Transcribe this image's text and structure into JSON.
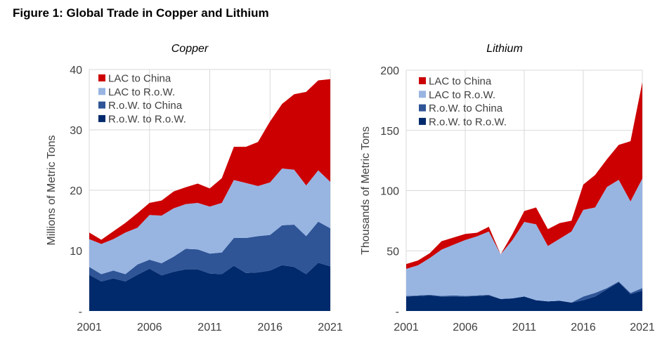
{
  "figure_title": "Figure 1: Global Trade in Copper and Lithium",
  "colors": {
    "LAC to China": "#cc0000",
    "LAC to R.o.W.": "#98b5e2",
    "R.o.W. to China": "#2f5597",
    "R.o.W. to R.o.W.": "#012a6c",
    "grid": "#d9d9d9"
  },
  "chart_data": [
    {
      "type": "area",
      "stacked": true,
      "title": "Copper",
      "ylabel": "Millions of Metric Tons",
      "ylim": [
        0,
        40
      ],
      "yticks": [
        0,
        10,
        20,
        30,
        40
      ],
      "ytick_labels": [
        "-",
        "10",
        "20",
        "30",
        "40"
      ],
      "xtick_labels": [
        "2001",
        "2006",
        "2011",
        "2016",
        "2021"
      ],
      "grid": true,
      "legend": "top-left",
      "x": [
        2001,
        2002,
        2003,
        2004,
        2005,
        2006,
        2007,
        2008,
        2009,
        2010,
        2011,
        2012,
        2013,
        2014,
        2015,
        2016,
        2017,
        2018,
        2019,
        2020,
        2021
      ],
      "series": [
        {
          "name": "R.o.W. to R.o.W.",
          "values": [
            6.0,
            4.9,
            5.4,
            4.9,
            6.0,
            7.0,
            5.9,
            6.5,
            6.9,
            6.9,
            6.2,
            6.1,
            7.5,
            6.3,
            6.4,
            6.7,
            7.6,
            7.3,
            6.1,
            8.0,
            7.4
          ]
        },
        {
          "name": "R.o.W. to China",
          "values": [
            1.3,
            1.2,
            1.3,
            1.2,
            1.7,
            1.5,
            2.0,
            2.5,
            3.4,
            3.3,
            3.3,
            3.6,
            4.6,
            5.8,
            6.0,
            5.9,
            6.6,
            7.0,
            6.3,
            6.8,
            6.3
          ]
        },
        {
          "name": "LAC to R.o.W.",
          "values": [
            4.6,
            5.0,
            5.2,
            6.9,
            6.1,
            7.4,
            7.9,
            8.0,
            7.4,
            7.7,
            7.8,
            8.2,
            9.6,
            9.1,
            8.3,
            8.7,
            9.4,
            9.1,
            8.4,
            8.5,
            7.7
          ]
        },
        {
          "name": "LAC to China",
          "values": [
            1.1,
            0.7,
            1.3,
            1.6,
            2.4,
            2.0,
            2.5,
            2.8,
            2.8,
            3.2,
            3.0,
            4.1,
            5.5,
            6.0,
            7.3,
            10.1,
            10.7,
            12.5,
            15.5,
            14.9,
            17.0
          ]
        }
      ]
    },
    {
      "type": "area",
      "stacked": true,
      "title": "Lithium",
      "ylabel": "Thousands of Metric Tons",
      "ylim": [
        0,
        200
      ],
      "yticks": [
        0,
        50,
        100,
        150,
        200
      ],
      "ytick_labels": [
        "-",
        "50",
        "100",
        "150",
        "200"
      ],
      "xtick_labels": [
        "2001",
        "2006",
        "2011",
        "2016",
        "2021"
      ],
      "grid": true,
      "legend": "top-left",
      "x": [
        2001,
        2002,
        2003,
        2004,
        2005,
        2006,
        2007,
        2008,
        2009,
        2010,
        2011,
        2012,
        2013,
        2014,
        2015,
        2016,
        2017,
        2018,
        2019,
        2020,
        2021
      ],
      "series": [
        {
          "name": "R.o.W. to R.o.W.",
          "values": [
            12,
            12.5,
            13,
            12,
            12,
            12,
            12.5,
            13,
            10,
            10.5,
            12,
            9,
            8,
            8.5,
            7,
            9,
            12,
            18,
            24,
            14,
            17
          ]
        },
        {
          "name": "R.o.W. to China",
          "values": [
            0.5,
            0.5,
            0.5,
            0.5,
            1,
            0.5,
            0.5,
            0.5,
            0,
            0,
            0,
            0,
            0,
            0,
            0,
            3,
            3,
            1,
            0.5,
            1,
            2
          ]
        },
        {
          "name": "LAC to R.o.W.",
          "values": [
            22.5,
            25,
            30.5,
            38.5,
            42,
            46.5,
            49,
            52.5,
            37,
            48.5,
            62,
            63,
            46,
            51.5,
            59,
            72,
            71,
            84,
            84.5,
            76,
            91
          ]
        },
        {
          "name": "LAC to China",
          "values": [
            4,
            4,
            4,
            7,
            6,
            5,
            3,
            4,
            0,
            5,
            9,
            14,
            14,
            13,
            9,
            21,
            27,
            23,
            29,
            50,
            80
          ]
        }
      ]
    }
  ]
}
